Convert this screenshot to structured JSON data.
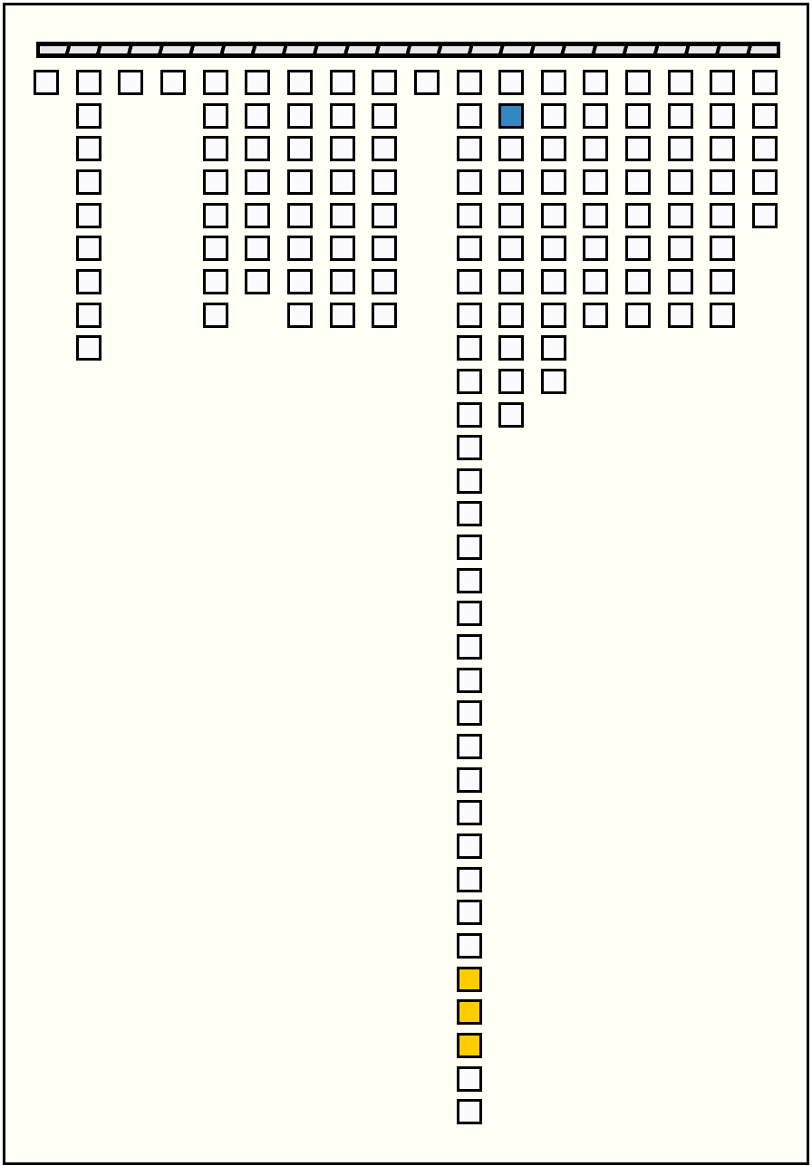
{
  "board": {
    "column_counts": [
      1,
      9,
      1,
      1,
      8,
      7,
      8,
      8,
      8,
      1,
      32,
      11,
      10,
      8,
      8,
      8,
      8,
      5
    ],
    "highlighted_cells": [
      {
        "column": 11,
        "row": 1,
        "color": "#3388c4"
      },
      {
        "column": 10,
        "row": 27,
        "color": "#ffcc00"
      },
      {
        "column": 10,
        "row": 28,
        "color": "#ffcc00"
      },
      {
        "column": 10,
        "row": 29,
        "color": "#ffcc00"
      }
    ],
    "default_cell_color": "#fafaff",
    "background_color": "#fffff5"
  }
}
